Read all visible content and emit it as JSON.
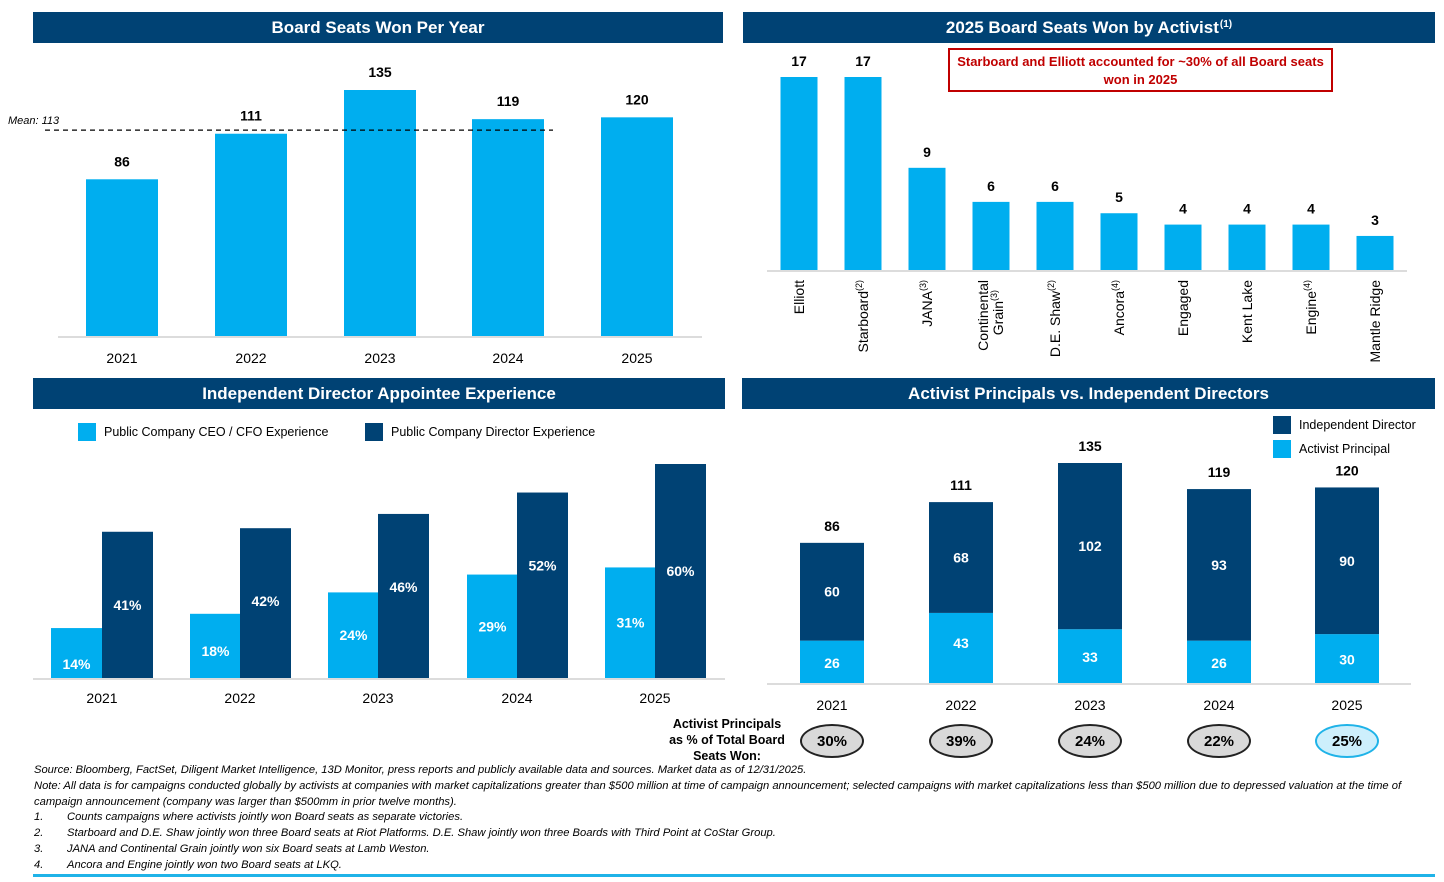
{
  "colors": {
    "light": "#00aeef",
    "dark": "#004274",
    "header": "#004274",
    "callout": "#c00000",
    "rule": "#1fb3e8"
  },
  "panels": {
    "top_left": {
      "title": "Board Seats Won Per Year"
    },
    "top_right": {
      "title": "2025 Board Seats Won by Activist",
      "title_sup": "(1)",
      "callout": "Starboard and Elliott accounted for ~30% of all Board seats won in 2025"
    },
    "bottom_left": {
      "title": "Independent Director Appointee Experience"
    },
    "bottom_right": {
      "title": "Activist Principals vs. Independent Directors",
      "ratio_label": "Activist Principals as % of Total Board Seats Won:"
    }
  },
  "chart_data": [
    {
      "id": "seats_per_year",
      "type": "bar",
      "title": "Board Seats Won Per Year",
      "categories": [
        "2021",
        "2022",
        "2023",
        "2024",
        "2025"
      ],
      "values": [
        86,
        111,
        135,
        119,
        120
      ],
      "ylim": [
        0,
        150
      ],
      "mean": {
        "label": "Mean: 113",
        "value": 113
      },
      "xlabel": "",
      "ylabel": "",
      "grid": false
    },
    {
      "id": "seats_by_activist",
      "type": "bar",
      "title": "2025 Board Seats Won by Activist(1)",
      "categories": [
        "Elliott",
        "Starboard",
        "JANA",
        "Continental Grain",
        "D.E. Shaw",
        "Ancora",
        "Engaged",
        "Kent Lake",
        "Engine",
        "Mantle Ridge"
      ],
      "footnote_marks": [
        "",
        "(2)",
        "(3)",
        "(3)",
        "(2)",
        "(4)",
        "",
        "",
        "(4)",
        ""
      ],
      "values": [
        17,
        17,
        9,
        6,
        6,
        5,
        4,
        4,
        4,
        3
      ],
      "ylim": [
        0,
        18
      ],
      "grid": false
    },
    {
      "id": "director_experience",
      "type": "bar",
      "title": "Independent Director Appointee Experience",
      "categories": [
        "2021",
        "2022",
        "2023",
        "2024",
        "2025"
      ],
      "series": [
        {
          "name": "Public Company CEO / CFO Experience",
          "values": [
            14,
            18,
            24,
            29,
            31
          ],
          "unit": "%"
        },
        {
          "name": "Public Company Director Experience",
          "values": [
            41,
            42,
            46,
            52,
            60
          ],
          "unit": "%"
        }
      ],
      "ylim": [
        0,
        60
      ],
      "legend": "top-left",
      "grid": false
    },
    {
      "id": "principals_vs_directors",
      "type": "bar",
      "stacked": true,
      "title": "Activist Principals vs. Independent Directors",
      "categories": [
        "2021",
        "2022",
        "2023",
        "2024",
        "2025"
      ],
      "series": [
        {
          "name": "Activist Principal",
          "values": [
            26,
            43,
            33,
            26,
            30
          ]
        },
        {
          "name": "Independent Director",
          "values": [
            60,
            68,
            102,
            93,
            90
          ]
        }
      ],
      "totals": [
        86,
        111,
        135,
        119,
        120
      ],
      "principal_share": [
        "30%",
        "39%",
        "24%",
        "22%",
        "25%"
      ],
      "highlighted_share_index": 4,
      "legend": "top-right",
      "ylim": [
        0,
        135
      ],
      "grid": false
    }
  ],
  "footnotes": {
    "source": "Source: Bloomberg, FactSet, Diligent Market Intelligence, 13D Monitor, press reports and publicly available data and sources. Market data as of 12/31/2025.",
    "note": "Note: All data is for campaigns conducted globally by activists at companies with market capitalizations greater than $500 million at time of campaign announcement; selected campaigns with market capitalizations less than $500 million due to depressed valuation at the time of campaign announcement (company was larger than $500mm in prior twelve months).",
    "items": [
      {
        "num": "1.",
        "text": "Counts campaigns where activists jointly won Board seats as separate victories."
      },
      {
        "num": "2.",
        "text": "Starboard and D.E. Shaw jointly won three Board seats at Riot Platforms. D.E. Shaw jointly won three Boards with Third Point at CoStar Group."
      },
      {
        "num": "3.",
        "text": "JANA and Continental Grain jointly won six Board seats at Lamb Weston."
      },
      {
        "num": "4.",
        "text": "Ancora and Engine jointly won two Board seats at LKQ."
      }
    ]
  }
}
